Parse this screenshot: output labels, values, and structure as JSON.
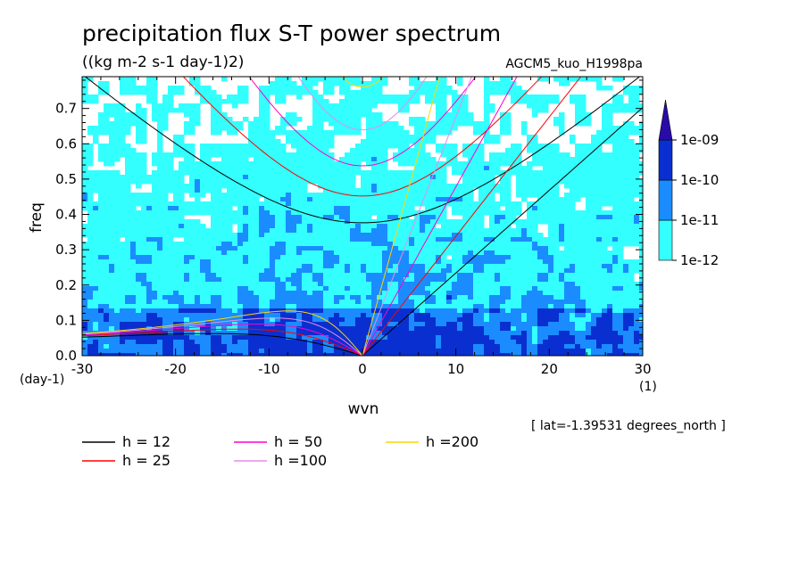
{
  "chart_data": {
    "type": "heatmap",
    "title": "precipitation flux S-T power spectrum",
    "units": "((kg m-2 s-1 day-1)2)",
    "experiment": "AGCM5_kuo_H1998pa",
    "xlabel": "wvn",
    "ylabel": "freq",
    "x_unit": "(1)",
    "y_unit": "(day-1)",
    "xlim": [
      -30,
      30
    ],
    "ylim": [
      0,
      0.79
    ],
    "x_ticks": [
      -30,
      -20,
      -10,
      0,
      10,
      20,
      30
    ],
    "x_tick_labels": [
      "-30",
      "-20",
      "-10",
      "0",
      "10",
      "20",
      "30"
    ],
    "y_ticks": [
      0.0,
      0.1,
      0.2,
      0.3,
      0.4,
      0.5,
      0.6,
      0.7
    ],
    "y_tick_labels": [
      "0.0",
      "0.1",
      "0.2",
      "0.3",
      "0.4",
      "0.5",
      "0.6",
      "0.7"
    ],
    "latitude_note": "[ lat=-1.39531 degrees_north ]",
    "colorbar": {
      "labels": [
        "1e-12",
        "1e-11",
        "1e-10",
        "1e-09"
      ],
      "colors": [
        "#33ffff",
        "#1a8cff",
        "#0a2fd0",
        "#2a0aa8",
        "#5a2ab0"
      ],
      "extend": "max"
    },
    "field_colors": {
      "white": "#ffffff",
      "cyan": "#33ffff",
      "blue": "#1a8cff",
      "dark": "#0a2fd0"
    },
    "dispersion_curves": [
      {
        "label": "h = 12",
        "h": 12,
        "color": "#000000"
      },
      {
        "label": "h = 25",
        "h": 25,
        "color": "#ff0000"
      },
      {
        "label": "h = 50",
        "h": 50,
        "color": "#ff00cc"
      },
      {
        "label": "h =100",
        "h": 100,
        "color": "#e88ce8"
      },
      {
        "label": "h =200",
        "h": 200,
        "color": "#ffd700"
      }
    ]
  }
}
